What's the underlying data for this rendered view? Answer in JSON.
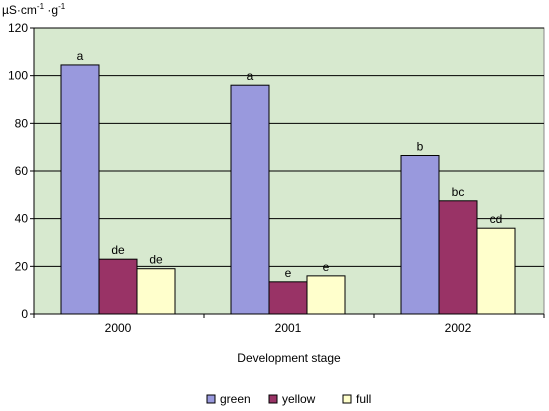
{
  "chart_data": {
    "type": "bar",
    "categories": [
      "2000",
      "2001",
      "2002"
    ],
    "series": [
      {
        "name": "green",
        "values": [
          104.5,
          96,
          66.5
        ],
        "labels": [
          "a",
          "a",
          "b"
        ]
      },
      {
        "name": "yellow",
        "values": [
          23,
          13.5,
          47.5
        ],
        "labels": [
          "de",
          "e",
          "bc"
        ]
      },
      {
        "name": "full",
        "values": [
          19,
          16,
          36
        ],
        "labels": [
          "de",
          "e",
          "cd"
        ]
      }
    ],
    "xlabel": "Development stage",
    "ylabel_parts": {
      "base": "µS·cm",
      "exp1": "-1",
      "mid": " ·g",
      "exp2": "-1"
    },
    "ylim": [
      0,
      120
    ],
    "yticks": [
      "0",
      "20",
      "40",
      "60",
      "80",
      "100",
      "120"
    ],
    "grid": "horizontal",
    "legend_position": "bottom",
    "colors": {
      "green": "#9999dd",
      "yellow": "#993366",
      "full": "#ffffcc",
      "plot_background": "#d7e9cf",
      "gridline": "#000000"
    }
  }
}
